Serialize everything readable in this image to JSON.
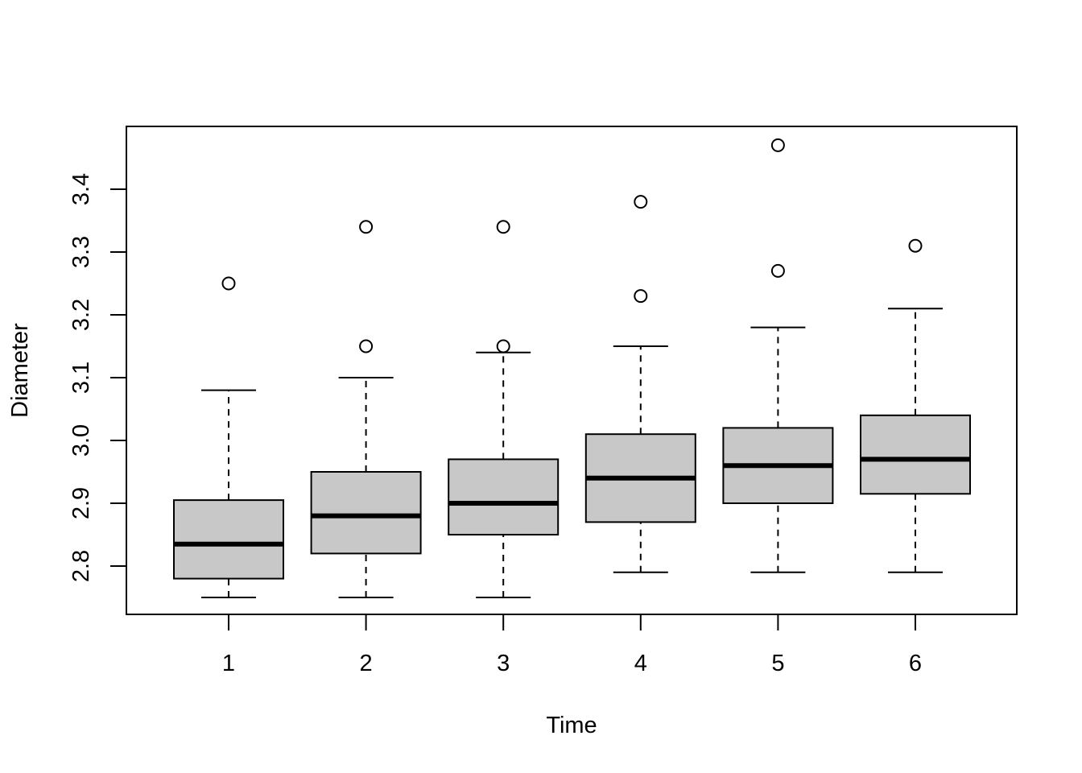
{
  "chart_data": {
    "type": "boxplot",
    "title": "",
    "xlabel": "Time",
    "ylabel": "Diameter",
    "categories": [
      "1",
      "2",
      "3",
      "4",
      "5",
      "6"
    ],
    "ylim": [
      2.725,
      3.5
    ],
    "yticks": [
      2.8,
      2.9,
      3.0,
      3.1,
      3.2,
      3.3,
      3.4
    ],
    "ytick_labels": [
      "2.8",
      "2.9",
      "3.0",
      "3.1",
      "3.2",
      "3.3",
      "3.4"
    ],
    "grid": false,
    "box_fill": "#c8c8c8",
    "boxes": [
      {
        "category": "1",
        "whisker_low": 2.75,
        "q1": 2.78,
        "median": 2.835,
        "q3": 2.905,
        "whisker_high": 3.08,
        "outliers": [
          3.25
        ]
      },
      {
        "category": "2",
        "whisker_low": 2.75,
        "q1": 2.82,
        "median": 2.88,
        "q3": 2.95,
        "whisker_high": 3.1,
        "outliers": [
          3.15,
          3.34
        ]
      },
      {
        "category": "3",
        "whisker_low": 2.75,
        "q1": 2.85,
        "median": 2.9,
        "q3": 2.97,
        "whisker_high": 3.14,
        "outliers": [
          3.15,
          3.34
        ]
      },
      {
        "category": "4",
        "whisker_low": 2.79,
        "q1": 2.87,
        "median": 2.94,
        "q3": 3.01,
        "whisker_high": 3.15,
        "outliers": [
          3.23,
          3.38
        ]
      },
      {
        "category": "5",
        "whisker_low": 2.79,
        "q1": 2.9,
        "median": 2.96,
        "q3": 3.02,
        "whisker_high": 3.18,
        "outliers": [
          3.27,
          3.47
        ]
      },
      {
        "category": "6",
        "whisker_low": 2.79,
        "q1": 2.915,
        "median": 2.97,
        "q3": 3.04,
        "whisker_high": 3.21,
        "outliers": [
          3.31
        ]
      }
    ]
  }
}
